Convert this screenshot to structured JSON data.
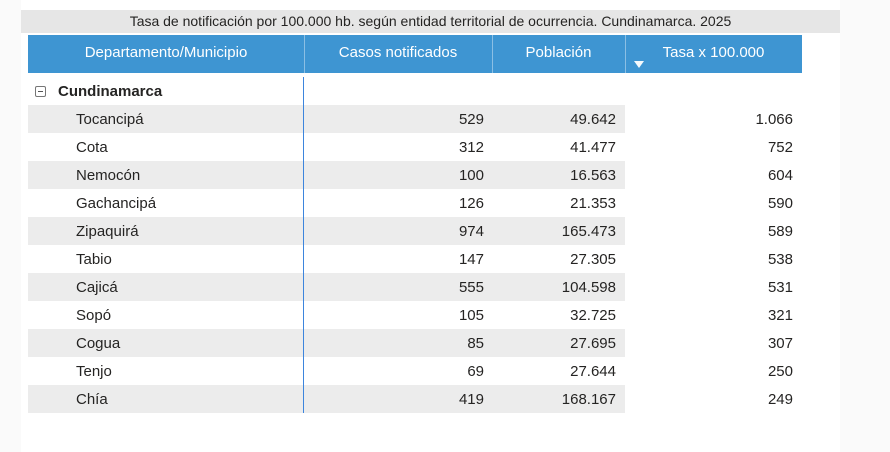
{
  "title": "Tasa de notificación por 100.000 hb. según entidad territorial de ocurrencia. Cundinamarca. 2025",
  "colors": {
    "page_bg": "#fafafa",
    "visual_bg": "#ffffff",
    "title_bg": "#e6e6e6",
    "header_bg": "#3e95d2",
    "header_text": "#ffffff",
    "band": "#ececec",
    "text": "#252423",
    "grid_line_blue": "#3d85dd"
  },
  "table": {
    "headers": [
      "Departamento/Municipio",
      "Casos notificados",
      "Población",
      "Tasa x 100.000"
    ],
    "sorted_column": "Tasa x 100.000",
    "sort_direction": "descending",
    "group_label": "Cundinamarca",
    "rows": [
      {
        "municipio": "Tocancipá",
        "casos": "529",
        "poblacion": "49.642",
        "tasa": "1.066"
      },
      {
        "municipio": "Cota",
        "casos": "312",
        "poblacion": "41.477",
        "tasa": "752"
      },
      {
        "municipio": "Nemocón",
        "casos": "100",
        "poblacion": "16.563",
        "tasa": "604"
      },
      {
        "municipio": "Gachancipá",
        "casos": "126",
        "poblacion": "21.353",
        "tasa": "590"
      },
      {
        "municipio": "Zipaquirá",
        "casos": "974",
        "poblacion": "165.473",
        "tasa": "589"
      },
      {
        "municipio": "Tabio",
        "casos": "147",
        "poblacion": "27.305",
        "tasa": "538"
      },
      {
        "municipio": "Cajicá",
        "casos": "555",
        "poblacion": "104.598",
        "tasa": "531"
      },
      {
        "municipio": "Sopó",
        "casos": "105",
        "poblacion": "32.725",
        "tasa": "321"
      },
      {
        "municipio": "Cogua",
        "casos": "85",
        "poblacion": "27.695",
        "tasa": "307"
      },
      {
        "municipio": "Tenjo",
        "casos": "69",
        "poblacion": "27.644",
        "tasa": "250"
      },
      {
        "municipio": "Chía",
        "casos": "419",
        "poblacion": "168.167",
        "tasa": "249"
      }
    ]
  },
  "chart_data": {
    "type": "table",
    "title": "Tasa de notificación por 100.000 hb. según entidad territorial de ocurrencia. Cundinamarca. 2025",
    "columns": [
      "Departamento/Municipio",
      "Casos notificados",
      "Población",
      "Tasa x 100.000"
    ],
    "group": "Cundinamarca",
    "sort": {
      "column": "Tasa x 100.000",
      "direction": "descending"
    },
    "rows": [
      [
        "Tocancipá",
        529,
        49642,
        1066
      ],
      [
        "Cota",
        312,
        41477,
        752
      ],
      [
        "Nemocón",
        100,
        16563,
        604
      ],
      [
        "Gachancipá",
        126,
        21353,
        590
      ],
      [
        "Zipaquirá",
        974,
        165473,
        589
      ],
      [
        "Tabio",
        147,
        27305,
        538
      ],
      [
        "Cajicá",
        555,
        104598,
        531
      ],
      [
        "Sopó",
        105,
        32725,
        321
      ],
      [
        "Cogua",
        85,
        27695,
        307
      ],
      [
        "Tenjo",
        69,
        27644,
        250
      ],
      [
        "Chía",
        419,
        168167,
        249
      ]
    ],
    "number_format": "thousands separator is a period (es-CO)"
  }
}
